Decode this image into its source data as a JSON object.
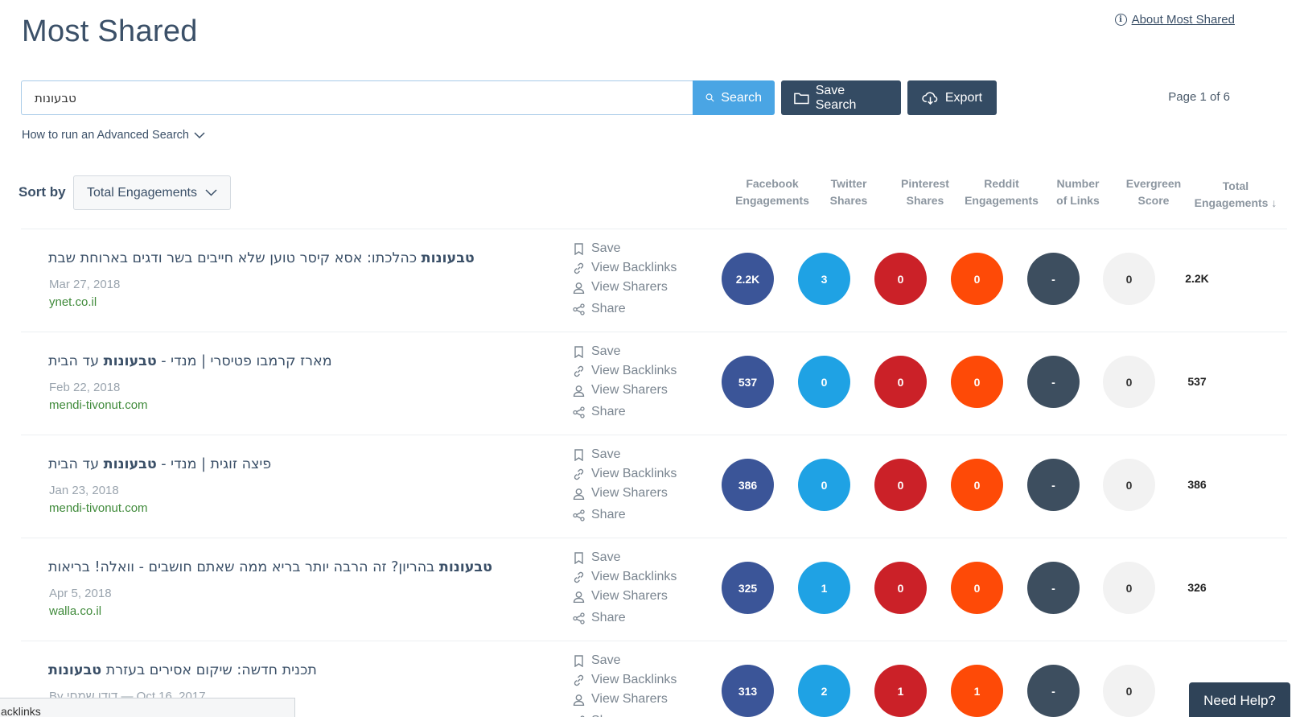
{
  "header": {
    "title": "Most Shared",
    "about_link": "About Most Shared"
  },
  "search": {
    "value": "טבעונות",
    "search_label": "Search",
    "save_label": "Save Search",
    "export_label": "Export",
    "page_indicator": "Page 1 of 6",
    "advanced_label": "How to run an Advanced Search"
  },
  "sort": {
    "label": "Sort by",
    "value": "Total Engagements"
  },
  "columns": [
    {
      "line1": "Facebook",
      "line2": "Engagements"
    },
    {
      "line1": "Twitter",
      "line2": "Shares"
    },
    {
      "line1": "Pinterest",
      "line2": "Shares"
    },
    {
      "line1": "Reddit",
      "line2": "Engagements"
    },
    {
      "line1": "Number",
      "line2": "of Links"
    },
    {
      "line1": "Evergreen",
      "line2": "Score"
    },
    {
      "line1": "Total",
      "line2": "Engagements ↓"
    }
  ],
  "action_labels": {
    "save": "Save",
    "backlinks": "View Backlinks",
    "sharers": "View Sharers",
    "share": "Share"
  },
  "colors": {
    "facebook": "#3b5598",
    "twitter": "#1fa2e4",
    "pinterest": "#cb2128",
    "reddit": "#fe4a07",
    "links": "#3d4e5f",
    "evergreen": "#f2f2f2"
  },
  "rows": [
    {
      "title_kw": "טבעונות",
      "title_rest": " כהלכתו: אסא קיסר טוען שלא חייבים בשר ודגים בארוחת שבת",
      "date": "Mar 27, 2018",
      "domain": "ynet.co.il",
      "facebook": "2.2K",
      "twitter": "3",
      "pinterest": "0",
      "reddit": "0",
      "links": "-",
      "evergreen": "0",
      "total": "2.2K"
    },
    {
      "title_pre": "מארז קרמבו פטיסרי | מנדי - ",
      "title_kw": "טבעונות",
      "title_rest": " עד הבית",
      "date": "Feb 22, 2018",
      "domain": "mendi-tivonut.com",
      "facebook": "537",
      "twitter": "0",
      "pinterest": "0",
      "reddit": "0",
      "links": "-",
      "evergreen": "0",
      "total": "537"
    },
    {
      "title_pre": "פיצה זוגית | מנדי - ",
      "title_kw": "טבעונות",
      "title_rest": " עד הבית",
      "date": "Jan 23, 2018",
      "domain": "mendi-tivonut.com",
      "facebook": "386",
      "twitter": "0",
      "pinterest": "0",
      "reddit": "0",
      "links": "-",
      "evergreen": "0",
      "total": "386"
    },
    {
      "title_kw": "טבעונות",
      "title_rest": " בהריון? זה הרבה יותר בריא ממה שאתם חושבים - וואלה! בריאות",
      "date": "Apr 5, 2018",
      "domain": "walla.co.il",
      "facebook": "325",
      "twitter": "1",
      "pinterest": "0",
      "reddit": "0",
      "links": "-",
      "evergreen": "0",
      "total": "326"
    },
    {
      "title_pre": "תכנית חדשה: שיקום אסירים בעזרת ",
      "title_kw": "טבעונות",
      "title_rest": "",
      "date": "By דודו שמחי — Oct 16, 2017",
      "domain": "",
      "facebook": "313",
      "twitter": "2",
      "pinterest": "1",
      "reddit": "1",
      "links": "-",
      "evergreen": "0",
      "total": ""
    }
  ],
  "footer": {
    "tooltip": "acklinks",
    "need_help": "Need Help?"
  }
}
